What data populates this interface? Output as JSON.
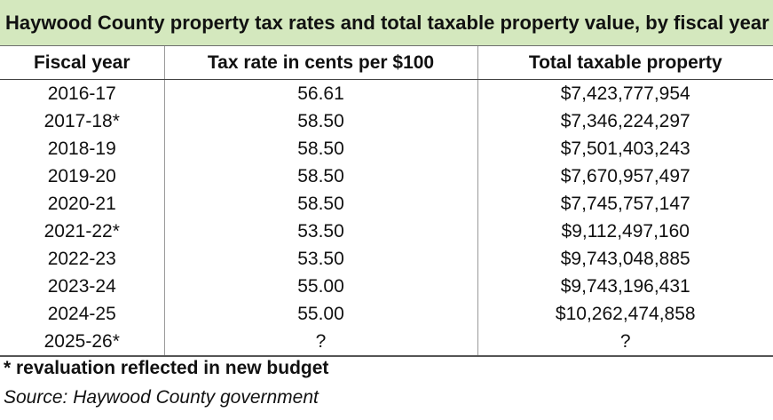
{
  "title": "Haywood County property tax rates and total taxable property value, by fiscal year",
  "table": {
    "headers": [
      "Fiscal year",
      "Tax rate in cents per $100",
      "Total taxable property"
    ],
    "rows": [
      [
        "2016-17",
        "56.61",
        "$7,423,777,954"
      ],
      [
        "2017-18*",
        "58.50",
        "$7,346,224,297"
      ],
      [
        "2018-19",
        "58.50",
        "$7,501,403,243"
      ],
      [
        "2019-20",
        "58.50",
        "$7,670,957,497"
      ],
      [
        "2020-21",
        "58.50",
        "$7,745,757,147"
      ],
      [
        "2021-22*",
        "53.50",
        "$9,112,497,160"
      ],
      [
        "2022-23",
        "53.50",
        "$9,743,048,885"
      ],
      [
        "2023-24",
        "55.00",
        "$9,743,196,431"
      ],
      [
        "2024-25",
        "55.00",
        "$10,262,474,858"
      ],
      [
        "2025-26*",
        "?",
        "?"
      ]
    ]
  },
  "footnote": "* revaluation reflected in new budget",
  "source": "Source: Haywood County government",
  "colors": {
    "title_background": "#d4e8be"
  }
}
